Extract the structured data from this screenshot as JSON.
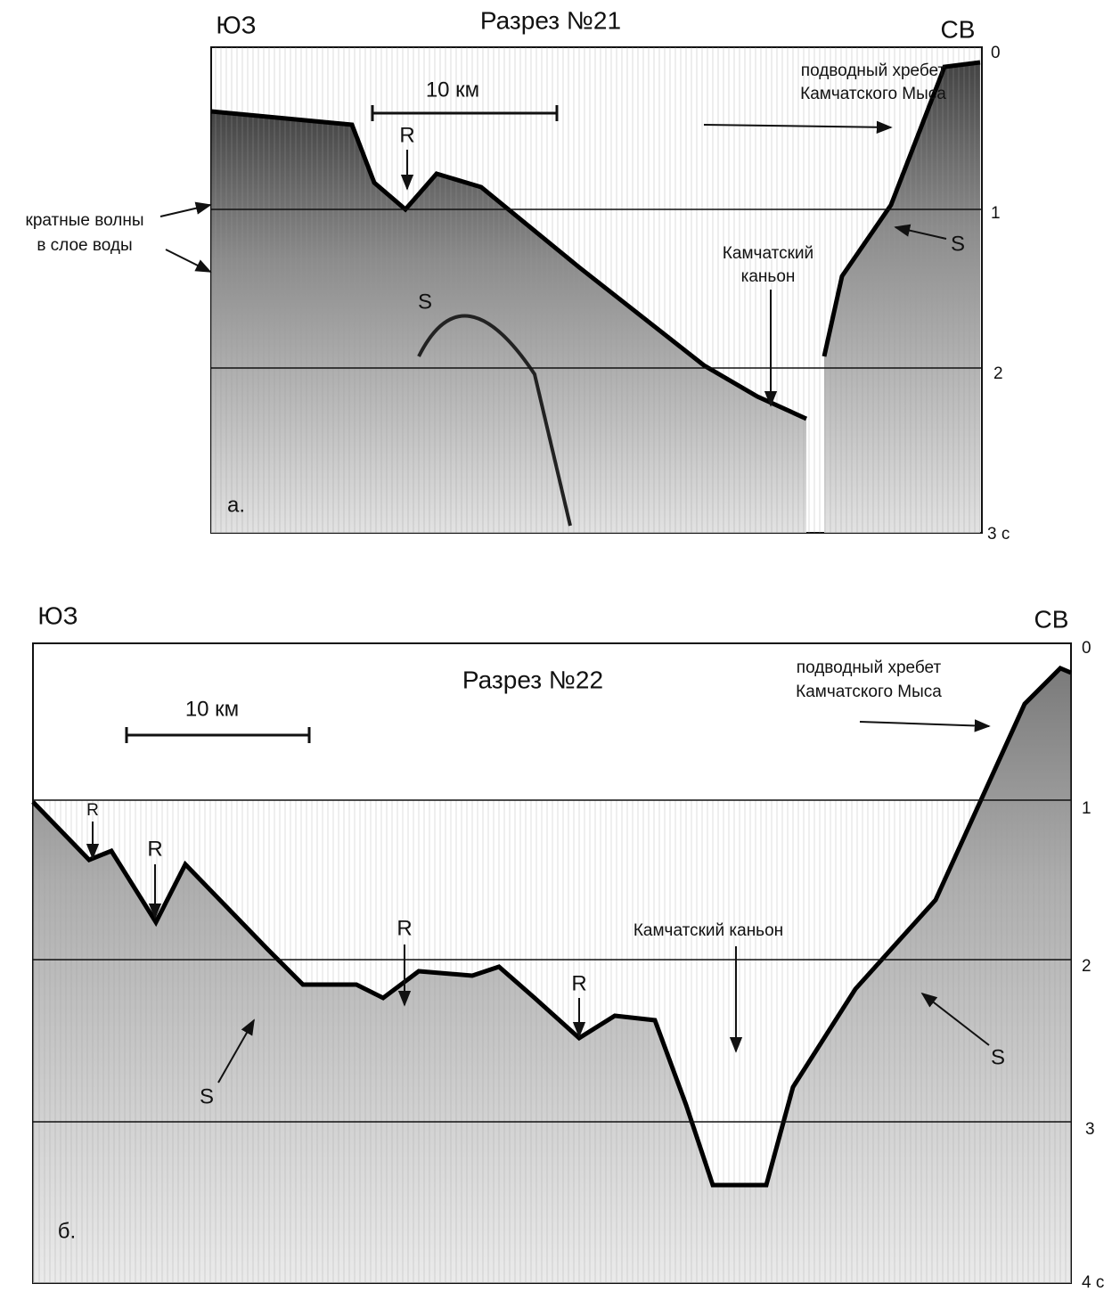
{
  "figure": {
    "panels": [
      {
        "title": "Разрез №21",
        "left_direction": "ЮЗ",
        "right_direction": "СВ",
        "scale_label": "10 км",
        "ridge_label": [
          "подводный хребет",
          "Камчатского Мыса"
        ],
        "multiple_label": [
          "кратные волны",
          "в слое воды"
        ],
        "canyon_label": [
          "Камчатский",
          "каньон"
        ],
        "reflectors": [
          "R",
          "S",
          "S"
        ],
        "time_labels": [
          "0",
          "1",
          "2",
          "3 с"
        ],
        "panel_label": "а."
      },
      {
        "title": "Разрез №22",
        "left_direction": "ЮЗ",
        "right_direction": "СВ",
        "scale_label": "10 км",
        "ridge_label": [
          "подводный хребет",
          "Камчатского Мыса"
        ],
        "canyon_label": [
          "Камчатский каньон"
        ],
        "reflectors": [
          "R",
          "R",
          "R",
          "R",
          "S",
          "S"
        ],
        "time_labels": [
          "0",
          "1",
          "2",
          "3",
          "4 с"
        ],
        "panel_label": "б."
      }
    ]
  }
}
